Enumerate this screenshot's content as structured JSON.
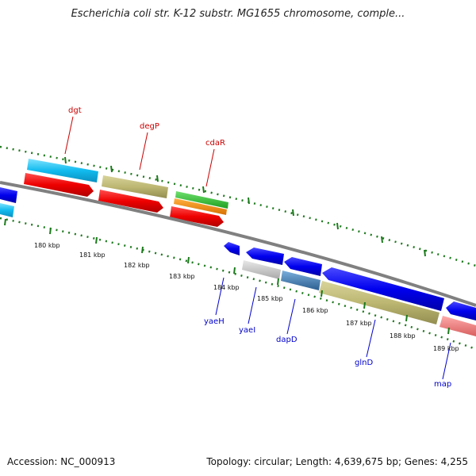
{
  "title": "Escherichia coli str. K-12 substr. MG1655 chromosome, comple...",
  "footer": {
    "accession": "Accession: NC_000913",
    "summary": "Topology: circular; Length: 4,639,675 bp; Genes: 4,255"
  },
  "scale": {
    "start_kbp": 178.6,
    "end_kbp": 190.6,
    "tick_labels": [
      "180 kbp",
      "181 kbp",
      "182 kbp",
      "183 kbp",
      "184 kbp",
      "185 kbp",
      "186 kbp",
      "187 kbp",
      "188 kbp",
      "189 kbp"
    ]
  },
  "labels": {
    "top": [
      "dgt",
      "degP",
      "cdaR"
    ],
    "bottom": [
      "yaeH",
      "yaeI",
      "dapD",
      "glnD",
      "map"
    ]
  },
  "colors": {
    "backbone": "#808080",
    "tick_minor": "#1f7a1f",
    "tick_major": "#1a7a1a",
    "label_top": "#cc0000",
    "label_bottom": "#0000cc"
  }
}
